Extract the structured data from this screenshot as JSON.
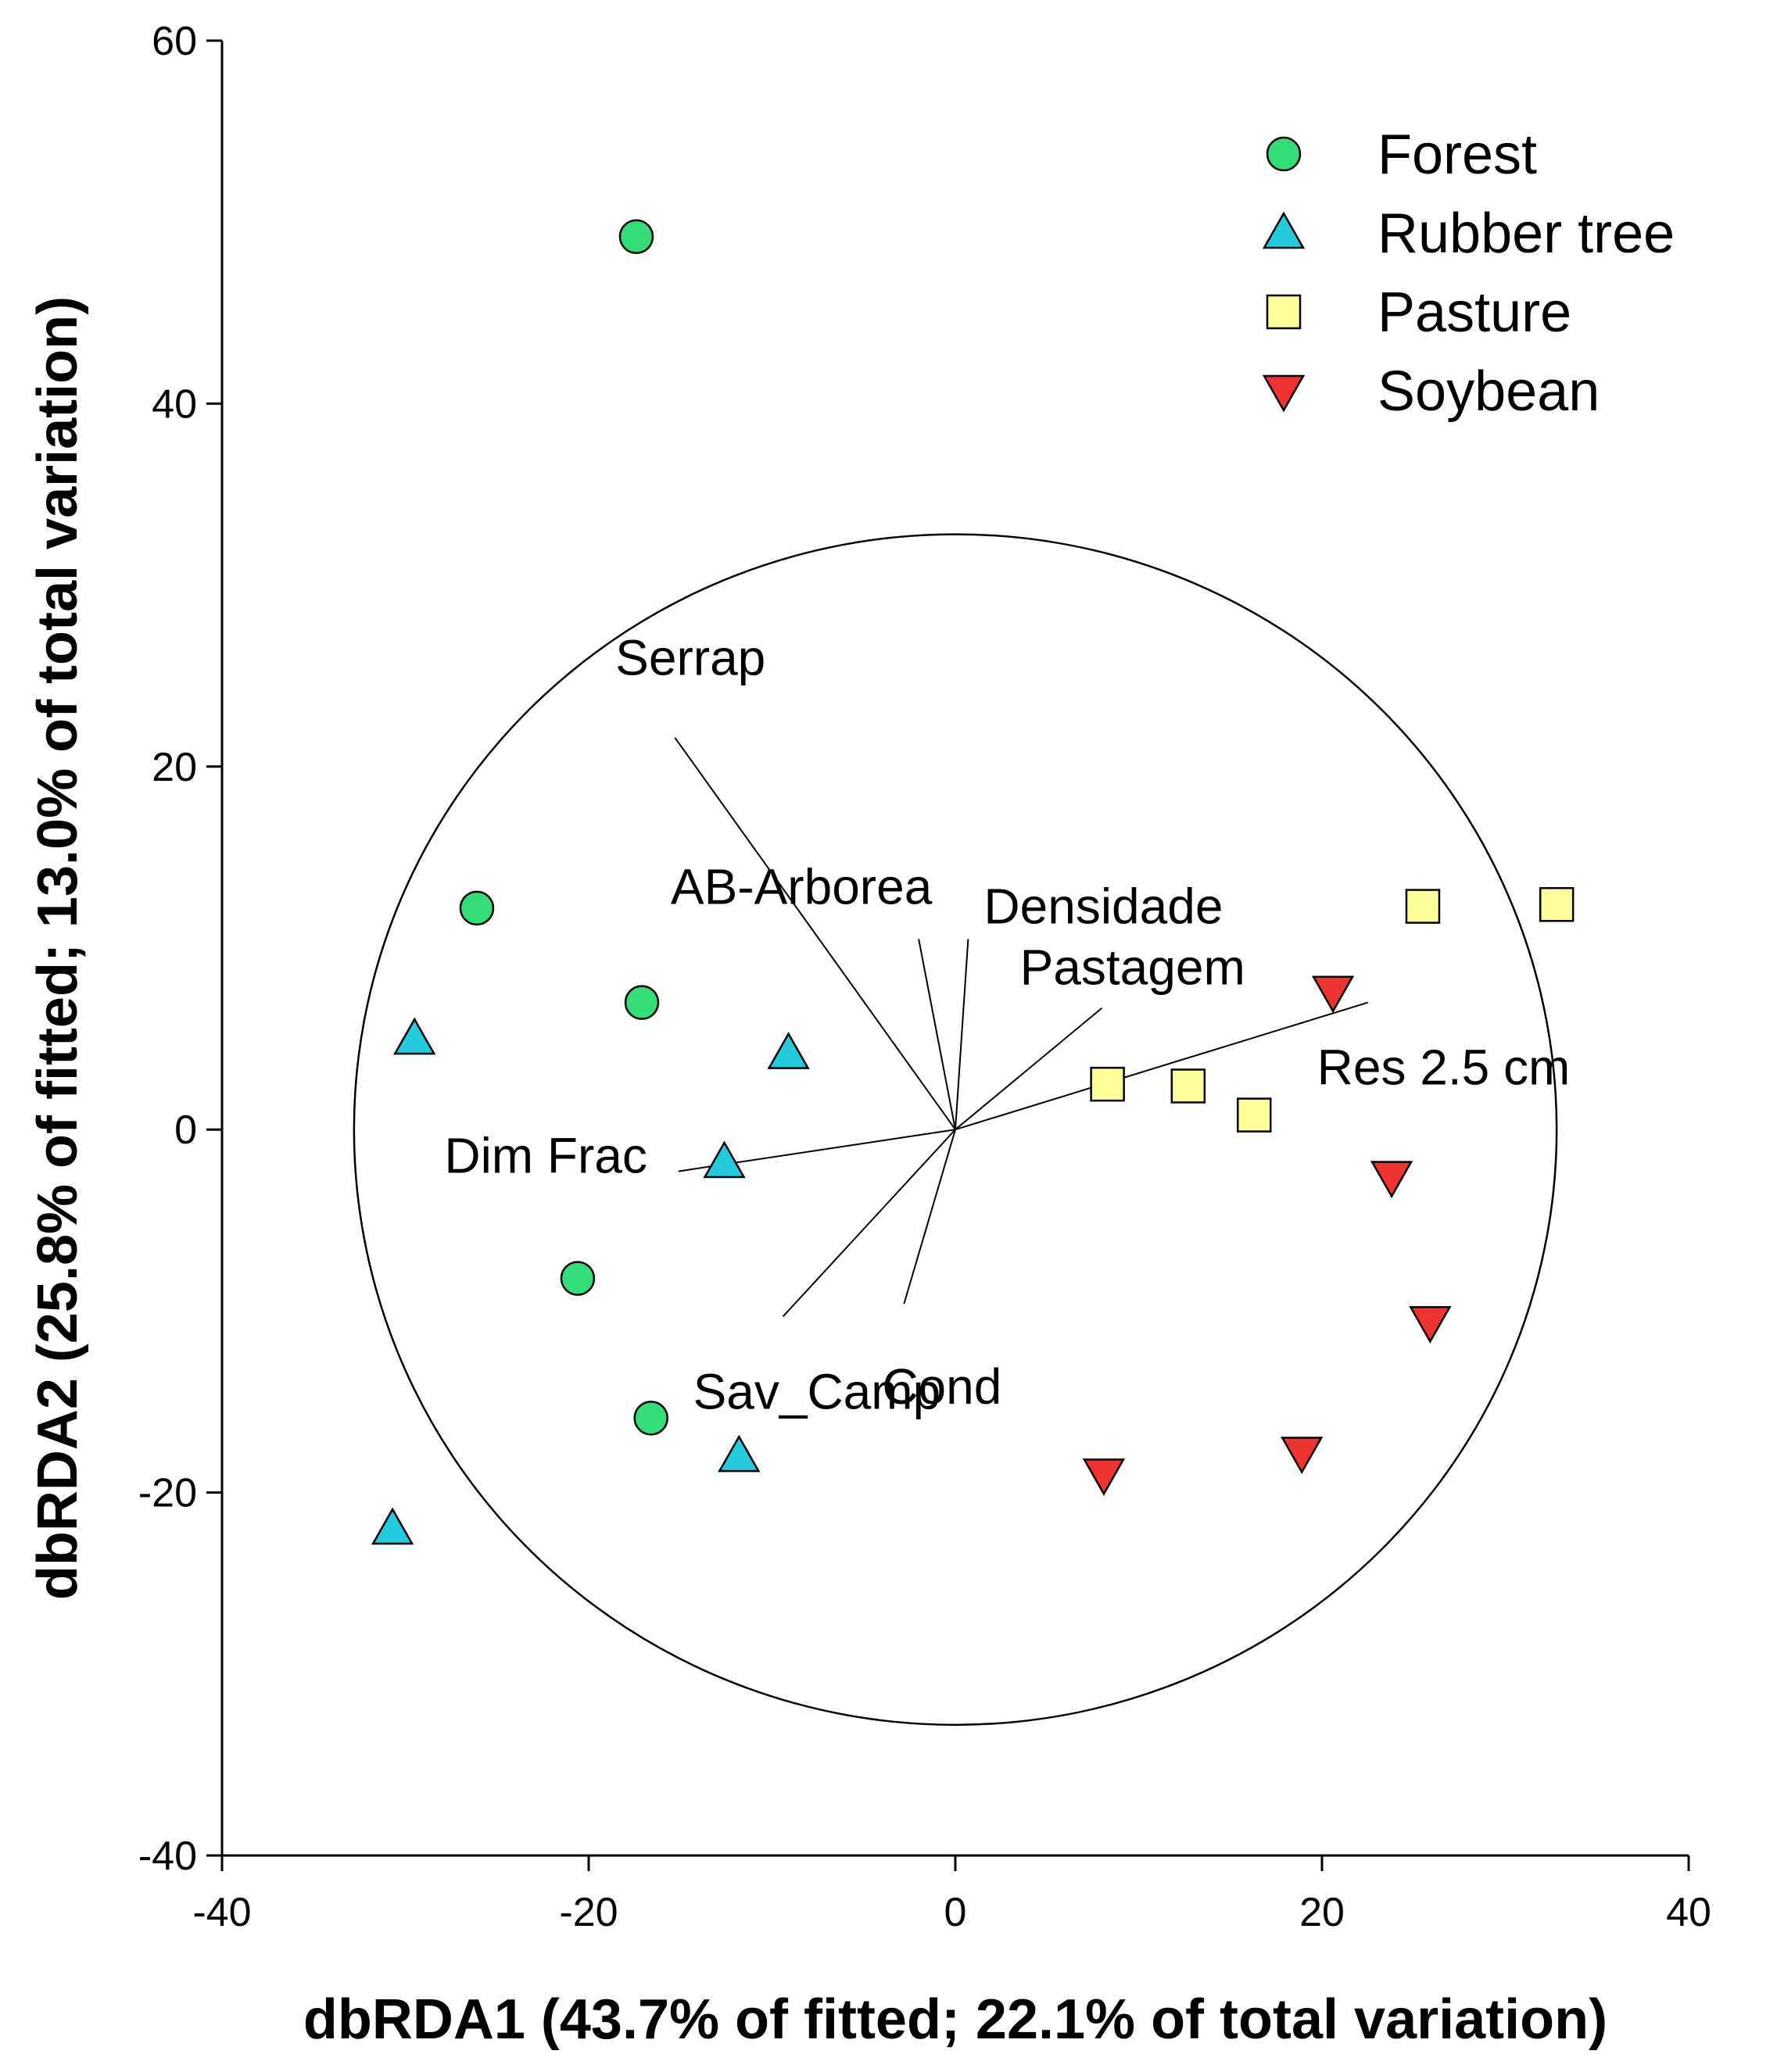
{
  "chart_data": {
    "type": "scatter",
    "title": "",
    "xlabel": "dbRDA1 (43.7% of fitted; 22.1% of total variation)",
    "ylabel": "dbRDA2 (25.8% of fitted; 13.0% of total variation)",
    "xlim": [
      -40,
      40
    ],
    "ylim": [
      -40,
      60
    ],
    "xticks": [
      -40,
      -20,
      0,
      20,
      40
    ],
    "yticks": [
      -40,
      -20,
      0,
      20,
      40,
      60
    ],
    "grid": false,
    "legend_position": "top-right",
    "series": [
      {
        "name": "Forest",
        "marker": "circle",
        "color": "#33dd77",
        "points": [
          [
            -17.4,
            49.2
          ],
          [
            -26.1,
            12.2
          ],
          [
            -17.1,
            7.0
          ],
          [
            -20.6,
            -8.2
          ],
          [
            -16.6,
            -15.9
          ]
        ]
      },
      {
        "name": "Rubber tree",
        "marker": "triangle-up",
        "color": "#22ccdd",
        "points": [
          [
            -29.5,
            5.0
          ],
          [
            -9.1,
            4.2
          ],
          [
            -12.6,
            -1.8
          ],
          [
            -11.8,
            -18.0
          ],
          [
            -30.7,
            -22.0
          ]
        ]
      },
      {
        "name": "Pasture",
        "marker": "square",
        "color": "#ffff99",
        "points": [
          [
            25.5,
            12.3
          ],
          [
            32.8,
            12.4
          ],
          [
            8.3,
            2.5
          ],
          [
            12.7,
            2.4
          ],
          [
            16.3,
            0.8
          ]
        ]
      },
      {
        "name": "Soybean",
        "marker": "triangle-down",
        "color": "#ee3333",
        "points": [
          [
            20.6,
            7.6
          ],
          [
            23.8,
            -2.6
          ],
          [
            25.9,
            -10.6
          ],
          [
            18.9,
            -17.8
          ],
          [
            8.1,
            -19.0
          ]
        ]
      }
    ],
    "circle": {
      "center": [
        0,
        0
      ],
      "radius": 32.8
    },
    "vectors": [
      {
        "label": "Serrap",
        "end": [
          -15.3,
          21.6
        ]
      },
      {
        "label": "AB-Arborea",
        "end": [
          -2.0,
          10.5
        ]
      },
      {
        "label": "Densidade",
        "end": [
          0.7,
          10.5
        ]
      },
      {
        "label": "Pastagem",
        "end": [
          8.0,
          6.7
        ]
      },
      {
        "label": "Res 2.5 cm",
        "end": [
          22.5,
          7.0
        ]
      },
      {
        "label": "Dim Frac",
        "end": [
          -15.1,
          -2.3
        ]
      },
      {
        "label": "Sav_Camp",
        "end": [
          -9.4,
          -10.3
        ]
      },
      {
        "label": "Cond",
        "end": [
          -2.8,
          -9.6
        ]
      }
    ]
  }
}
